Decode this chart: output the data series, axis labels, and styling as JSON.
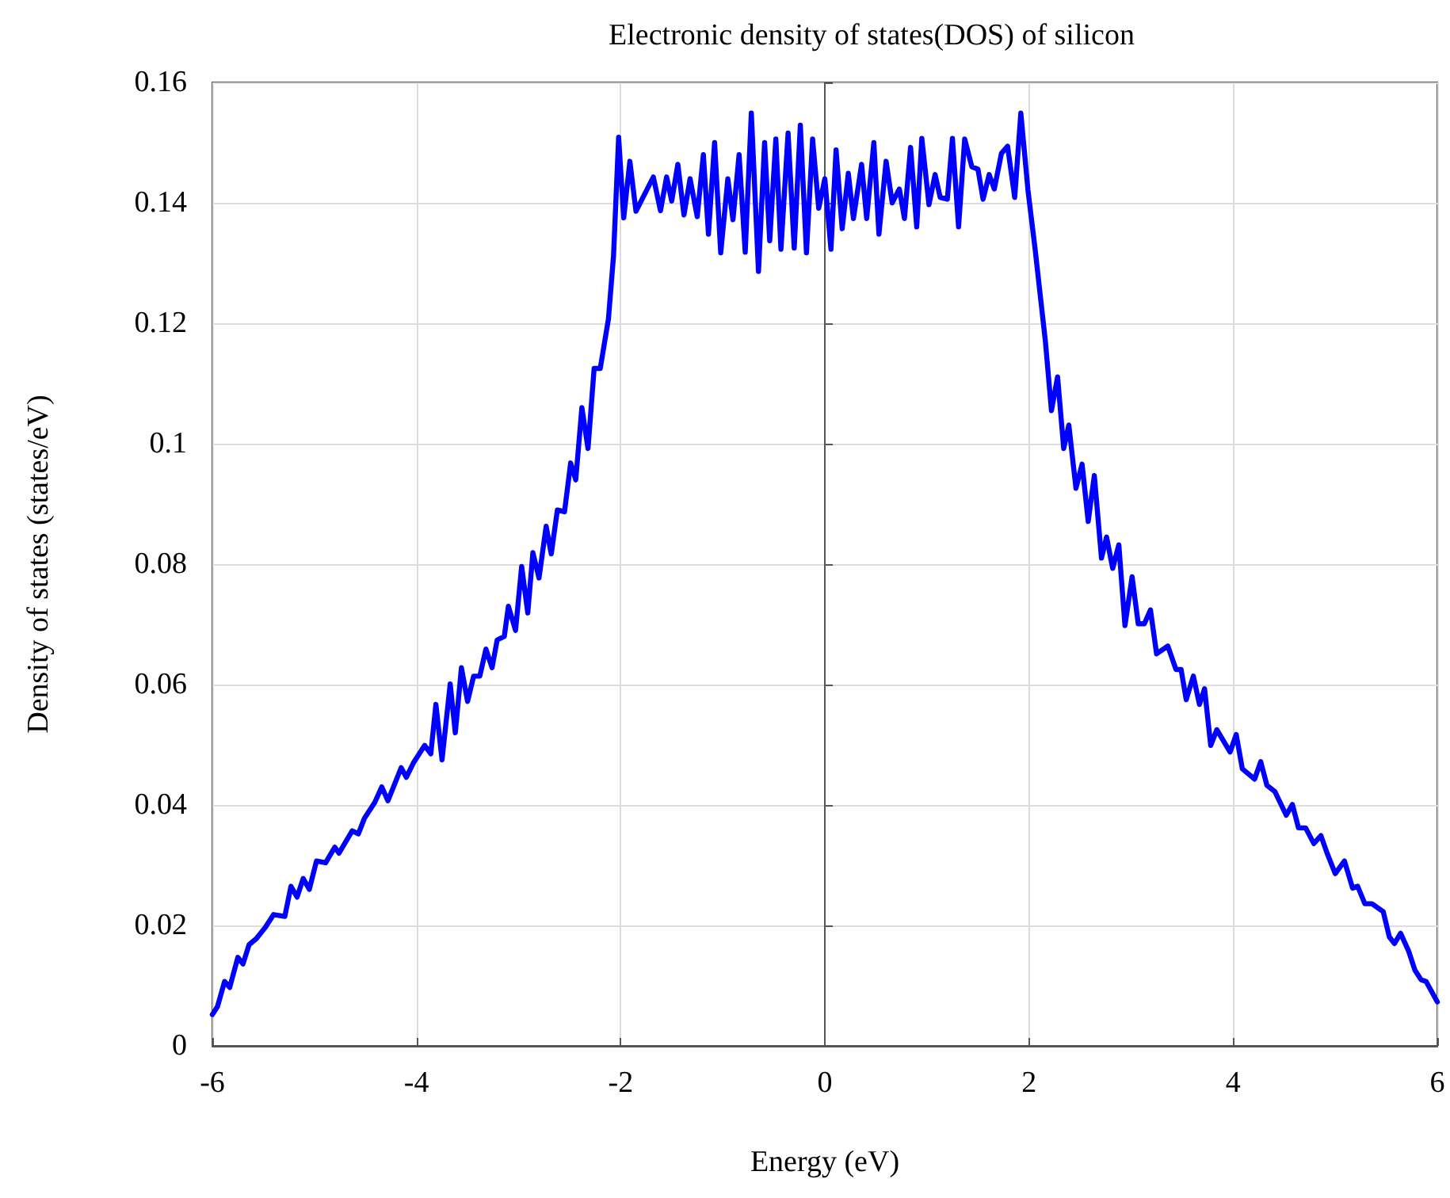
{
  "chart_data": {
    "type": "line",
    "title": "Electronic density of states(DOS) of silicon",
    "xlabel": "Energy (eV)",
    "ylabel": "Density of states (states/eV)",
    "xlim": [
      -6,
      6
    ],
    "xticks": [
      -6,
      -4,
      -2,
      0,
      2,
      4,
      6
    ],
    "ylim": [
      0,
      0.16
    ],
    "yticks": [
      0,
      0.02,
      0.04,
      0.06,
      0.08,
      0.1,
      0.12,
      0.14,
      0.16
    ],
    "grid": true,
    "marker": "none",
    "line_style": "solid",
    "series": [
      {
        "color": "#0000ff",
        "x": [
          -6,
          -5.95,
          -5.88,
          -5.83,
          -5.75,
          -5.7,
          -5.64,
          -5.57,
          -5.48,
          -5.4,
          -5.29,
          -5.23,
          -5.17,
          -5.11,
          -5.05,
          -4.98,
          -4.89,
          -4.8,
          -4.76,
          -4.63,
          -4.57,
          -4.51,
          -4.41,
          -4.34,
          -4.28,
          -4.15,
          -4.1,
          -4.03,
          -3.92,
          -3.86,
          -3.81,
          -3.75,
          -3.67,
          -3.62,
          -3.56,
          -3.5,
          -3.44,
          -3.38,
          -3.32,
          -3.26,
          -3.21,
          -3.14,
          -3.1,
          -3.03,
          -2.97,
          -2.91,
          -2.86,
          -2.8,
          -2.73,
          -2.68,
          -2.62,
          -2.55,
          -2.49,
          -2.44,
          -2.38,
          -2.32,
          -2.26,
          -2.2,
          -2.12,
          -2.07,
          -2.02,
          -1.97,
          -1.91,
          -1.85,
          -1.68,
          -1.61,
          -1.55,
          -1.5,
          -1.44,
          -1.38,
          -1.32,
          -1.25,
          -1.19,
          -1.14,
          -1.08,
          -1.02,
          -0.95,
          -0.9,
          -0.84,
          -0.78,
          -0.72,
          -0.65,
          -0.59,
          -0.54,
          -0.48,
          -0.43,
          -0.36,
          -0.3,
          -0.24,
          -0.18,
          -0.12,
          -0.06,
          0,
          0.06,
          0.11,
          0.17,
          0.23,
          0.28,
          0.36,
          0.41,
          0.48,
          0.53,
          0.6,
          0.66,
          0.73,
          0.78,
          0.84,
          0.9,
          0.95,
          1.02,
          1.08,
          1.13,
          1.2,
          1.25,
          1.31,
          1.37,
          1.44,
          1.5,
          1.55,
          1.61,
          1.66,
          1.73,
          1.79,
          1.86,
          1.92,
          1.99,
          2.06,
          2.16,
          2.22,
          2.28,
          2.34,
          2.39,
          2.46,
          2.52,
          2.58,
          2.64,
          2.71,
          2.76,
          2.82,
          2.88,
          2.94,
          3.01,
          3.07,
          3.13,
          3.19,
          3.25,
          3.36,
          3.44,
          3.49,
          3.54,
          3.61,
          3.67,
          3.72,
          3.78,
          3.84,
          3.97,
          4.03,
          4.09,
          4.21,
          4.27,
          4.33,
          4.41,
          4.52,
          4.58,
          4.64,
          4.71,
          4.79,
          4.86,
          4.92,
          5,
          5.09,
          5.17,
          5.22,
          5.29,
          5.36,
          5.47,
          5.53,
          5.58,
          5.64,
          5.72,
          5.78,
          5.84,
          5.89,
          6
        ],
        "values": [
          0.0052,
          0.0065,
          0.0107,
          0.0097,
          0.0147,
          0.0136,
          0.0168,
          0.0178,
          0.0197,
          0.0218,
          0.0215,
          0.0265,
          0.0247,
          0.0278,
          0.026,
          0.0307,
          0.0304,
          0.033,
          0.032,
          0.0357,
          0.0352,
          0.0378,
          0.0404,
          0.043,
          0.0407,
          0.0462,
          0.0446,
          0.047,
          0.0499,
          0.0485,
          0.0567,
          0.0475,
          0.0601,
          0.052,
          0.0628,
          0.0572,
          0.0614,
          0.0614,
          0.0659,
          0.0628,
          0.0674,
          0.068,
          0.073,
          0.069,
          0.0796,
          0.0719,
          0.0819,
          0.0777,
          0.0863,
          0.0817,
          0.089,
          0.0887,
          0.0968,
          0.094,
          0.106,
          0.0992,
          0.1125,
          0.1125,
          0.1207,
          0.1312,
          0.1509,
          0.1375,
          0.1469,
          0.1386,
          0.1443,
          0.1387,
          0.1443,
          0.1403,
          0.1464,
          0.138,
          0.144,
          0.1377,
          0.148,
          0.1348,
          0.15,
          0.1317,
          0.144,
          0.1372,
          0.148,
          0.1318,
          0.1549,
          0.1286,
          0.15,
          0.1337,
          0.1506,
          0.1323,
          0.1516,
          0.1325,
          0.1529,
          0.1317,
          0.1506,
          0.1391,
          0.144,
          0.1323,
          0.1488,
          0.1357,
          0.1449,
          0.1374,
          0.1464,
          0.1374,
          0.15,
          0.1348,
          0.1469,
          0.14,
          0.1423,
          0.1374,
          0.1492,
          0.136,
          0.1507,
          0.1397,
          0.1447,
          0.1409,
          0.1406,
          0.1507,
          0.136,
          0.1506,
          0.146,
          0.1456,
          0.1406,
          0.1447,
          0.1423,
          0.1482,
          0.1494,
          0.1409,
          0.1549,
          0.1421,
          0.1323,
          0.1171,
          0.1055,
          0.1111,
          0.0992,
          0.1031,
          0.0926,
          0.0966,
          0.0871,
          0.0947,
          0.081,
          0.0845,
          0.0793,
          0.0832,
          0.0698,
          0.0779,
          0.0701,
          0.0701,
          0.0724,
          0.0651,
          0.0664,
          0.0625,
          0.0625,
          0.0575,
          0.0614,
          0.0567,
          0.0593,
          0.0499,
          0.0525,
          0.0488,
          0.0517,
          0.046,
          0.0443,
          0.0472,
          0.0433,
          0.0422,
          0.0383,
          0.0401,
          0.0362,
          0.0362,
          0.0336,
          0.0349,
          0.032,
          0.0286,
          0.0307,
          0.0262,
          0.0265,
          0.0236,
          0.0236,
          0.0223,
          0.0181,
          0.017,
          0.0187,
          0.0157,
          0.0126,
          0.011,
          0.0107,
          0.0073
        ]
      }
    ]
  }
}
